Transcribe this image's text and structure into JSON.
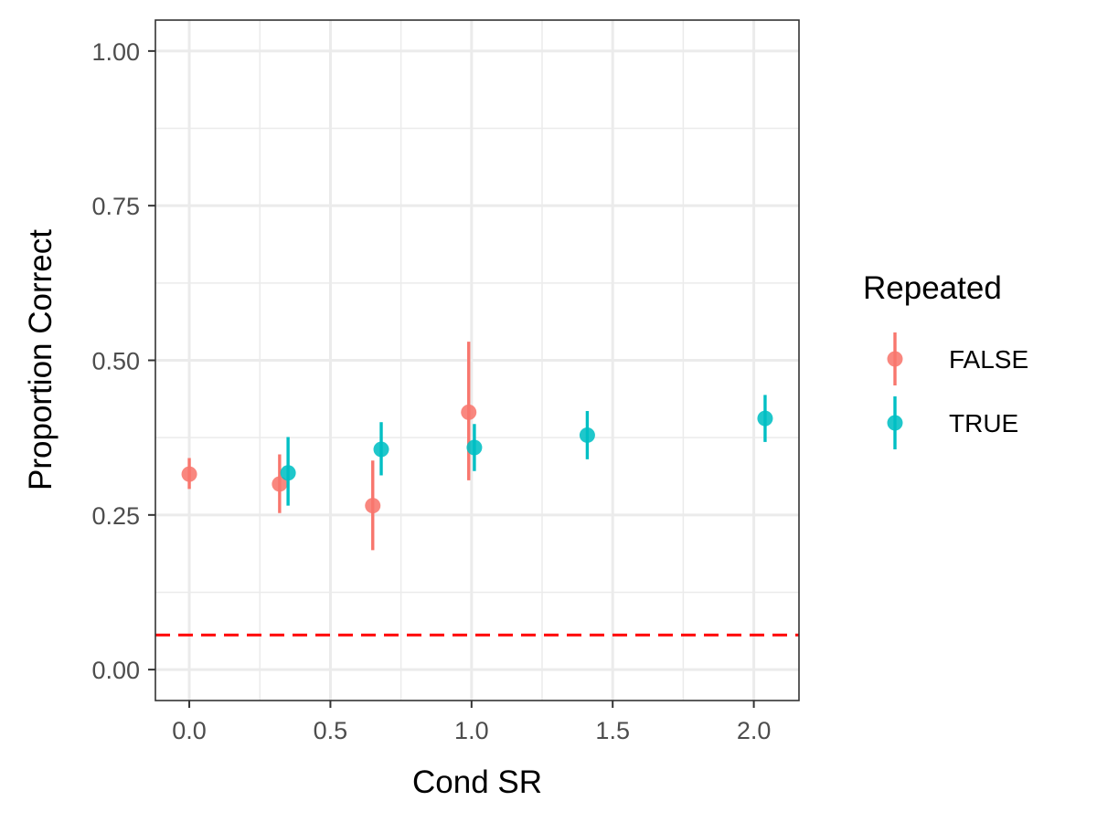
{
  "chart_data": {
    "type": "scatter",
    "title": "",
    "xlabel": "Cond SR",
    "ylabel": "Proportion Correct",
    "xlim": [
      -0.12,
      2.16
    ],
    "ylim": [
      -0.05,
      1.05
    ],
    "x_ticks": [
      0.0,
      0.5,
      1.0,
      1.5,
      2.0
    ],
    "x_tick_labels": [
      "0.0",
      "0.5",
      "1.0",
      "1.5",
      "2.0"
    ],
    "y_ticks": [
      0.0,
      0.25,
      0.5,
      0.75,
      1.0
    ],
    "y_tick_labels": [
      "0.00",
      "0.25",
      "0.50",
      "0.75",
      "1.00"
    ],
    "grid": true,
    "legend": {
      "title": "Repeated",
      "position": "right"
    },
    "reference_line": {
      "y": 0.056,
      "color": "#ff0000",
      "style": "dashed"
    },
    "series": [
      {
        "name": "FALSE",
        "color": "#f8766d",
        "points": [
          {
            "x": 0.0,
            "y": 0.316,
            "ymin": 0.292,
            "ymax": 0.342
          },
          {
            "x": 0.32,
            "y": 0.3,
            "ymin": 0.253,
            "ymax": 0.348
          },
          {
            "x": 0.65,
            "y": 0.265,
            "ymin": 0.193,
            "ymax": 0.338
          },
          {
            "x": 0.99,
            "y": 0.416,
            "ymin": 0.306,
            "ymax": 0.53
          }
        ]
      },
      {
        "name": "TRUE",
        "color": "#00bfc4",
        "points": [
          {
            "x": 0.35,
            "y": 0.318,
            "ymin": 0.265,
            "ymax": 0.376
          },
          {
            "x": 0.68,
            "y": 0.356,
            "ymin": 0.314,
            "ymax": 0.4
          },
          {
            "x": 1.01,
            "y": 0.359,
            "ymin": 0.321,
            "ymax": 0.397
          },
          {
            "x": 1.41,
            "y": 0.379,
            "ymin": 0.34,
            "ymax": 0.418
          },
          {
            "x": 2.04,
            "y": 0.406,
            "ymin": 0.368,
            "ymax": 0.444
          }
        ]
      }
    ]
  }
}
